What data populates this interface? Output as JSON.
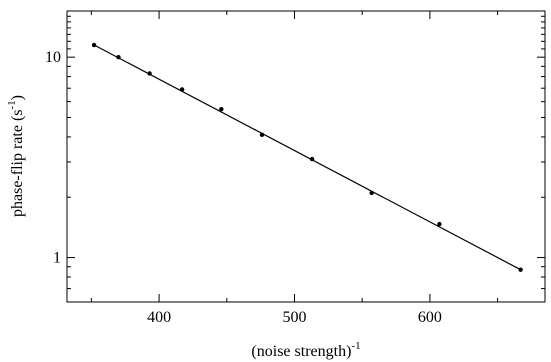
{
  "chart_data": {
    "type": "scatter",
    "title": "",
    "xlabel": {
      "text": "(noise strength)",
      "superscript": "-1"
    },
    "ylabel": {
      "text": "phase-flip rate (s",
      "superscript": "-1",
      "suffix": ")"
    },
    "xlim": [
      332,
      685
    ],
    "ylim": [
      0.6,
      17
    ],
    "yscale": "log",
    "grid": false,
    "legend": "none",
    "x_ticks": [
      {
        "value": 400,
        "label": "400"
      },
      {
        "value": 500,
        "label": "500"
      },
      {
        "value": 600,
        "label": "600"
      }
    ],
    "y_ticks": [
      {
        "value": 1,
        "label": "1"
      },
      {
        "value": 10,
        "label": "10"
      }
    ],
    "series": [
      {
        "style": "markers",
        "x": [
          352,
          370,
          393,
          417,
          446,
          476,
          513,
          557,
          607,
          667
        ],
        "y": [
          11.5,
          10.0,
          8.3,
          6.9,
          5.5,
          4.1,
          3.1,
          2.1,
          1.47,
          0.87
        ]
      },
      {
        "style": "line",
        "x": [
          352,
          667
        ],
        "y": [
          11.5,
          0.87
        ]
      }
    ],
    "colors": {
      "markers": "#000000",
      "line": "#000000",
      "axes": "#000000"
    }
  }
}
